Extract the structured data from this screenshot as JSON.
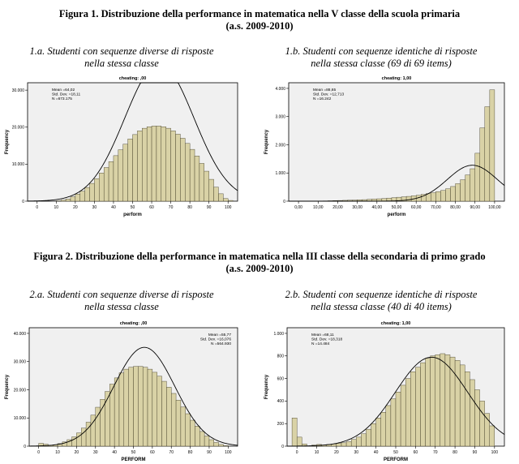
{
  "figure1": {
    "title": "Figura 1. Distribuzione della performance in matematica nella V classe della scuola primaria",
    "year": "(a.s. 2009-2010)"
  },
  "figure2": {
    "title": "Figura 2. Distribuzione della performance in matematica nella III classe della secondaria di primo grado",
    "year": "(a.s. 2009-2010)"
  },
  "panels": [
    {
      "title_line1": "1.a. Studenti con sequenze diverse di risposte",
      "title_line2": "nella stessa classe"
    },
    {
      "title_line1": "1.b. Studenti con sequenze identiche di risposte",
      "title_line2": "nella stessa classe (69 di 69 items)"
    },
    {
      "title_line1": "2.a. Studenti con sequenze diverse di risposte",
      "title_line2": "nella stessa classe"
    },
    {
      "title_line1": "2.b. Studenti con sequenze identiche di risposte",
      "title_line2": "nella stessa classe (40 di 40 items)"
    }
  ],
  "colors": {
    "bar_fill": "#d9d2a6",
    "bar_stroke": "#3a3520",
    "plot_bg": "#f0f0f0",
    "curve": "#000000"
  },
  "chart_data": [
    {
      "type": "bar",
      "header": "cheating: ,00",
      "stats": [
        "Mean =64,02",
        "Std. Dev. =18,11",
        "N =673.175"
      ],
      "stats_position": "top-left",
      "xlabel": "perform",
      "ylabel": "Frequency",
      "xlim": [
        -5,
        105
      ],
      "ylim": [
        0,
        32000
      ],
      "xticks": [
        0,
        10,
        20,
        30,
        40,
        50,
        60,
        70,
        80,
        90,
        100
      ],
      "xtick_labels": [
        "0",
        "10",
        "20",
        "30",
        "40",
        "50",
        "60",
        "70",
        "80",
        "90",
        "100"
      ],
      "yticks": [
        0,
        10000,
        20000,
        30000
      ],
      "ytick_labels": [
        "0",
        "10.000",
        "20.000",
        "30.000"
      ],
      "bin_width": 2.5,
      "bin_centers": [
        -1.25,
        1.25,
        3.75,
        6.25,
        8.75,
        11.25,
        13.75,
        16.25,
        18.75,
        21.25,
        23.75,
        26.25,
        28.75,
        31.25,
        33.75,
        36.25,
        38.75,
        41.25,
        43.75,
        46.25,
        48.75,
        51.25,
        53.75,
        56.25,
        58.75,
        61.25,
        63.75,
        66.25,
        68.75,
        71.25,
        73.75,
        76.25,
        78.75,
        81.25,
        83.75,
        86.25,
        88.75,
        91.25,
        93.75,
        96.25,
        98.75,
        101.25
      ],
      "values": [
        0,
        0,
        0,
        0,
        0,
        100,
        300,
        600,
        1200,
        1900,
        2700,
        3700,
        4800,
        6100,
        7600,
        9100,
        10700,
        12300,
        13900,
        15400,
        16800,
        18000,
        19000,
        19700,
        20100,
        20300,
        20300,
        20100,
        19700,
        19000,
        18100,
        17000,
        15600,
        14000,
        12200,
        10200,
        8100,
        5900,
        3800,
        2000,
        700,
        200
      ],
      "normal_curve": {
        "mean": 64.02,
        "sd": 18.11,
        "n": 673175
      }
    },
    {
      "type": "bar",
      "header": "cheating: 1,00",
      "stats": [
        "Mean =88,65",
        "Std. Dev. =12,713",
        "N =16.242"
      ],
      "stats_position": "top-left",
      "xlabel": "perform",
      "ylabel": "Frequency",
      "xlim": [
        -5,
        105
      ],
      "ylim": [
        0,
        4200
      ],
      "xticks": [
        0,
        10,
        20,
        30,
        40,
        50,
        60,
        70,
        80,
        90,
        100
      ],
      "xtick_labels": [
        "0,00",
        "10,00",
        "20,00",
        "30,00",
        "40,00",
        "50,00",
        "60,00",
        "70,00",
        "80,00",
        "90,00",
        "100,00"
      ],
      "yticks": [
        0,
        1000,
        2000,
        3000,
        4000
      ],
      "ytick_labels": [
        "0",
        "1.000",
        "2.000",
        "3.000",
        "4.000"
      ],
      "bin_width": 2.5,
      "bin_centers": [
        13.75,
        16.25,
        18.75,
        21.25,
        23.75,
        26.25,
        28.75,
        31.25,
        33.75,
        36.25,
        38.75,
        41.25,
        43.75,
        46.25,
        48.75,
        51.25,
        53.75,
        56.25,
        58.75,
        61.25,
        63.75,
        66.25,
        68.75,
        71.25,
        73.75,
        76.25,
        78.75,
        81.25,
        83.75,
        86.25,
        88.75,
        91.25,
        93.75,
        96.25,
        98.75
      ],
      "values": [
        10,
        15,
        20,
        25,
        30,
        35,
        40,
        50,
        55,
        65,
        75,
        85,
        95,
        110,
        125,
        140,
        155,
        170,
        190,
        210,
        240,
        270,
        300,
        340,
        380,
        440,
        520,
        620,
        760,
        930,
        1150,
        1700,
        2600,
        3350,
        3950
      ],
      "normal_curve": {
        "mean": 88.65,
        "sd": 12.713,
        "n": 16242
      }
    },
    {
      "type": "bar",
      "header": "cheating: ,00",
      "stats": [
        "Mean =55,77",
        "Std. Dev. =16,076",
        "N =564.930"
      ],
      "stats_position": "top-right",
      "xlabel": "PERFORM",
      "ylabel": "Frequency",
      "xlim": [
        -5,
        105
      ],
      "ylim": [
        0,
        42000
      ],
      "xticks": [
        0,
        10,
        20,
        30,
        40,
        50,
        60,
        70,
        80,
        90,
        100
      ],
      "xtick_labels": [
        "0",
        "10",
        "20",
        "30",
        "40",
        "50",
        "60",
        "70",
        "80",
        "90",
        "100"
      ],
      "yticks": [
        0,
        10000,
        20000,
        30000,
        40000
      ],
      "ytick_labels": [
        "0",
        "10.000",
        "20.000",
        "30.000",
        "40.000"
      ],
      "bin_width": 2.5,
      "bin_centers": [
        1.25,
        3.75,
        6.25,
        8.75,
        11.25,
        13.75,
        16.25,
        18.75,
        21.25,
        23.75,
        26.25,
        28.75,
        31.25,
        33.75,
        36.25,
        38.75,
        41.25,
        43.75,
        46.25,
        48.75,
        51.25,
        53.75,
        56.25,
        58.75,
        61.25,
        63.75,
        66.25,
        68.75,
        71.25,
        73.75,
        76.25,
        78.75,
        81.25,
        83.75,
        86.25,
        88.75,
        91.25,
        93.75,
        96.25,
        98.75
      ],
      "values": [
        1000,
        700,
        300,
        500,
        900,
        1500,
        2300,
        3300,
        4700,
        6400,
        8500,
        11000,
        13800,
        16600,
        19400,
        22000,
        24200,
        26000,
        27300,
        28000,
        28300,
        28300,
        28000,
        27300,
        26200,
        24800,
        23000,
        20900,
        18700,
        16300,
        13900,
        11500,
        9200,
        7100,
        5200,
        3600,
        2300,
        1300,
        600,
        200
      ],
      "normal_curve": {
        "mean": 55.77,
        "sd": 16.076,
        "n": 564930
      }
    },
    {
      "type": "bar",
      "header": "cheating: 1,00",
      "stats": [
        "Mean =68,11",
        "Std. Dev. =18,318",
        "N =14.484"
      ],
      "stats_position": "top-left",
      "xlabel": "PERFORM",
      "ylabel": "Frequency",
      "xlim": [
        -5,
        105
      ],
      "ylim": [
        0,
        1050
      ],
      "xticks": [
        0,
        10,
        20,
        30,
        40,
        50,
        60,
        70,
        80,
        90,
        100
      ],
      "xtick_labels": [
        "0",
        "10",
        "20",
        "30",
        "40",
        "50",
        "60",
        "70",
        "80",
        "90",
        "100"
      ],
      "yticks": [
        0,
        200,
        400,
        600,
        800,
        1000
      ],
      "ytick_labels": [
        "0",
        "200",
        "400",
        "600",
        "800",
        "1.000"
      ],
      "bin_width": 2.5,
      "bin_centers": [
        -1.25,
        1.25,
        3.75,
        6.25,
        8.75,
        11.25,
        13.75,
        16.25,
        18.75,
        21.25,
        23.75,
        26.25,
        28.75,
        31.25,
        33.75,
        36.25,
        38.75,
        41.25,
        43.75,
        46.25,
        48.75,
        51.25,
        53.75,
        56.25,
        58.75,
        61.25,
        63.75,
        66.25,
        68.75,
        71.25,
        73.75,
        76.25,
        78.75,
        81.25,
        83.75,
        86.25,
        88.75,
        91.25,
        93.75,
        96.25,
        98.75
      ],
      "values": [
        250,
        80,
        20,
        0,
        10,
        15,
        10,
        15,
        20,
        25,
        30,
        40,
        60,
        80,
        110,
        150,
        200,
        250,
        300,
        360,
        420,
        480,
        540,
        600,
        660,
        700,
        740,
        780,
        800,
        810,
        820,
        810,
        790,
        760,
        720,
        660,
        590,
        500,
        400,
        290,
        180
      ],
      "normal_curve": {
        "mean": 68.11,
        "sd": 18.318,
        "n": 14484
      }
    }
  ]
}
